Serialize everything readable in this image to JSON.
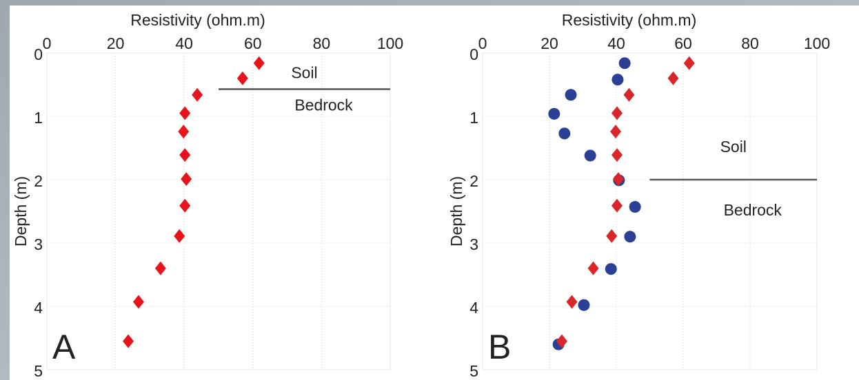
{
  "chart_data": [
    {
      "type": "scatter",
      "panel_label": "A",
      "xlabel": "Resistivity (ohm.m)",
      "ylabel": "Depth (m)",
      "xlim": [
        0,
        100
      ],
      "xticks": [
        0,
        20,
        40,
        60,
        80,
        100
      ],
      "ylim": [
        0,
        5
      ],
      "yticks": [
        0,
        1,
        2,
        3,
        4,
        5
      ],
      "y_inverted": true,
      "grid": true,
      "series": [
        {
          "color": "#e8141b",
          "marker": "diamond",
          "x": [
            61.8,
            57,
            43.8,
            40.2,
            39.8,
            40.2,
            40.6,
            40.2,
            38.6,
            33.1,
            26.7,
            23.7
          ],
          "y": [
            0.16,
            0.4,
            0.66,
            0.95,
            1.24,
            1.61,
            1.99,
            2.41,
            2.89,
            3.4,
            3.93,
            4.55
          ]
        }
      ],
      "annotations": {
        "upper": "Soil",
        "lower": "Bedrock",
        "boundary_depth": 0.57,
        "boundary_x": [
          50,
          100
        ]
      }
    },
    {
      "type": "scatter",
      "panel_label": "B",
      "xlabel": "Resistivity (ohm.m)",
      "ylabel": "Depth (m)",
      "xlim": [
        0,
        100
      ],
      "xticks": [
        0,
        20,
        40,
        60,
        80,
        100
      ],
      "ylim": [
        0,
        5
      ],
      "yticks": [
        0,
        1,
        2,
        3,
        4,
        5
      ],
      "y_inverted": true,
      "grid": true,
      "series": [
        {
          "color": "#2b3f95",
          "marker": "circle",
          "x": [
            42.5,
            40.4,
            26.4,
            21.4,
            24.5,
            32.2,
            40.8,
            45.6,
            44.1,
            38.4,
            30.3,
            22.7
          ],
          "y": [
            0.16,
            0.42,
            0.66,
            0.96,
            1.27,
            1.62,
            2.01,
            2.43,
            2.9,
            3.41,
            3.98,
            4.6
          ]
        },
        {
          "color": "#d8262a",
          "marker": "diamond",
          "x": [
            61.8,
            57,
            43.8,
            40.2,
            39.8,
            40.2,
            40.6,
            40.2,
            38.6,
            33.1,
            26.7,
            23.7
          ],
          "y": [
            0.16,
            0.4,
            0.66,
            0.95,
            1.24,
            1.61,
            1.99,
            2.41,
            2.89,
            3.4,
            3.93,
            4.55
          ]
        }
      ],
      "annotations": {
        "upper": "Soil",
        "lower": "Bedrock",
        "boundary_depth": 2.0,
        "boundary_x": [
          50,
          100
        ]
      }
    }
  ]
}
